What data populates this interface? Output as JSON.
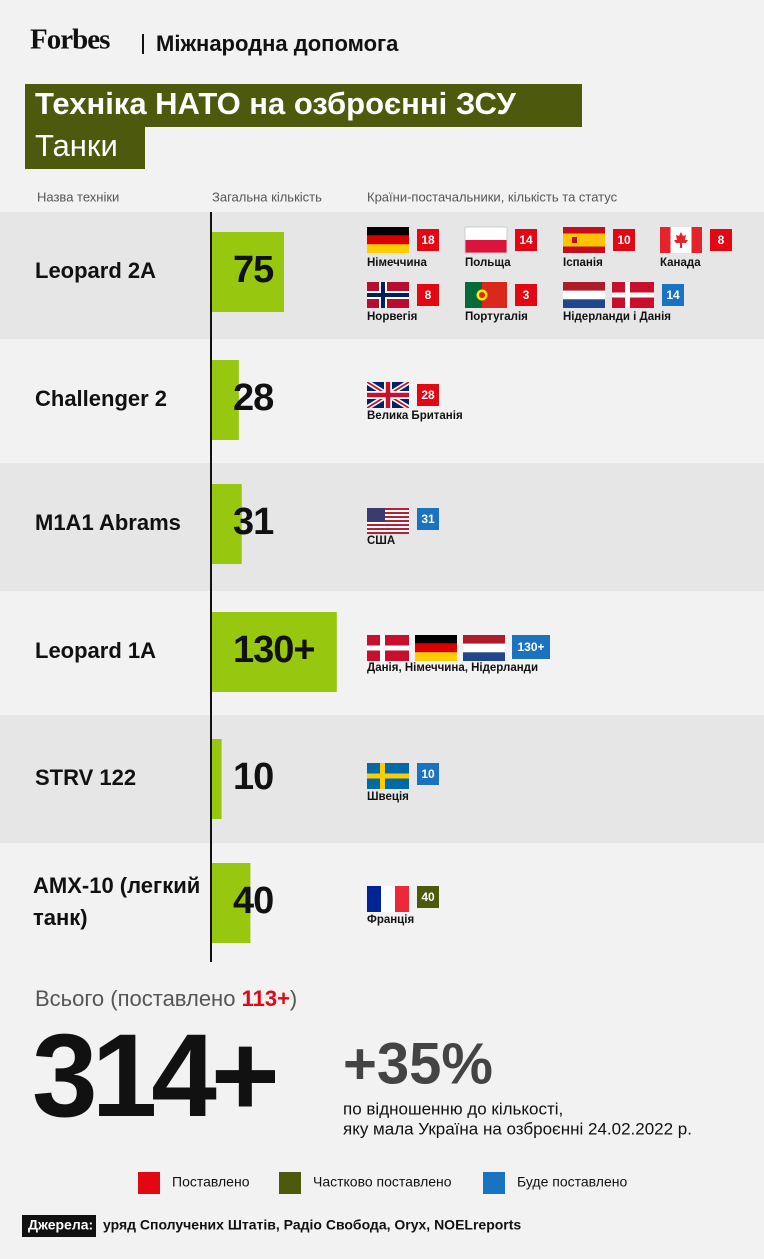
{
  "header": {
    "brand": "Forbes",
    "section": "Міжнародна допомога"
  },
  "chart_data": {
    "type": "bar",
    "orientation": "horizontal",
    "title": "Техніка НАТО на озброєнні ЗСУ",
    "subtitle": "Танки",
    "column_headers": [
      "Назва техніки",
      "Загальна кількість",
      "Країни-постачальники, кількість та статус"
    ],
    "categories": [
      "Leopard 2A",
      "Challenger 2",
      "M1A1 Abrams",
      "Leopard 1A",
      "STRV 122",
      "AMX-10 (легкий танк)"
    ],
    "values": [
      75,
      28,
      31,
      130,
      10,
      40
    ],
    "value_labels": [
      "75",
      "28",
      "31",
      "130+",
      "10",
      "40"
    ],
    "color": "#97c80f",
    "suppliers": [
      [
        {
          "country": "Німеччина",
          "count": 18,
          "status": "Поставлено"
        },
        {
          "country": "Польща",
          "count": 14,
          "status": "Поставлено"
        },
        {
          "country": "Іспанія",
          "count": 10,
          "status": "Поставлено"
        },
        {
          "country": "Канада",
          "count": 8,
          "status": "Поставлено"
        },
        {
          "country": "Норвегія",
          "count": 8,
          "status": "Поставлено"
        },
        {
          "country": "Португалія",
          "count": 3,
          "status": "Поставлено"
        },
        {
          "country": "Нідерланди і Данія",
          "count": 14,
          "status": "Буде поставлено"
        }
      ],
      [
        {
          "country": "Велика Британія",
          "count": 28,
          "status": "Поставлено"
        }
      ],
      [
        {
          "country": "США",
          "count": 31,
          "status": "Буде поставлено"
        }
      ],
      [
        {
          "country": "Данія, Німеччина, Нідерланди",
          "count": 130,
          "label": "130+",
          "status": "Буде поставлено"
        }
      ],
      [
        {
          "country": "Швеція",
          "count": 10,
          "status": "Буде поставлено"
        }
      ],
      [
        {
          "country": "Франція",
          "count": 40,
          "status": "Частково поставлено"
        }
      ]
    ],
    "legend": [
      {
        "name": "Поставлено",
        "color": "#e30613"
      },
      {
        "name": "Частково поставлено",
        "color": "#4d5a0e"
      },
      {
        "name": "Буде поставлено",
        "color": "#1a73c0"
      }
    ]
  },
  "total": {
    "caption": "Всього (поставлено",
    "delivered": "113+",
    "caption_end": ")",
    "value": "314+",
    "change": "+35%",
    "change_note": [
      "по відношенню до кількості,",
      "яку мала Україна на озброєнні 24.02.2022 р."
    ]
  },
  "sources": {
    "label": "Джерела:",
    "text": "уряд Сполучених Штатів, Радіо Свобода, Oryx, NOELreports"
  }
}
